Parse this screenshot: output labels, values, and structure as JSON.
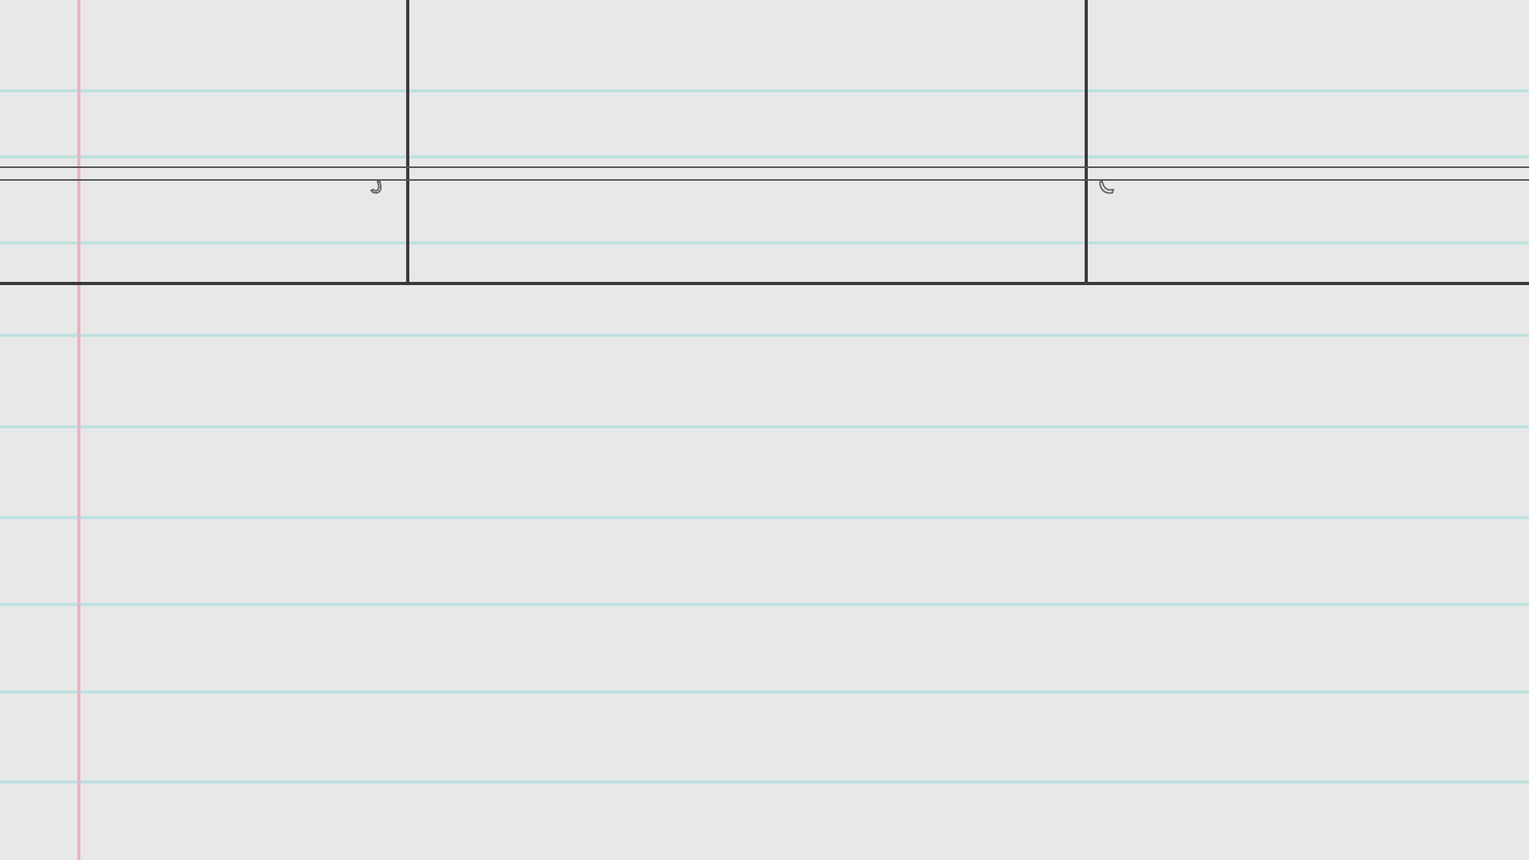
{
  "scene": {
    "type": "hand-drawn notebook paper sketch",
    "paper": {
      "background": "#e8e8e8",
      "ruled_line_color": "#bfe1df",
      "margin_line_color": "#e7b5c0"
    },
    "ink_color": "#3a3a3a",
    "rail_color": "#555555",
    "icons": {
      "left_hook": "hook-icon",
      "right_hook": "hook-icon"
    }
  }
}
